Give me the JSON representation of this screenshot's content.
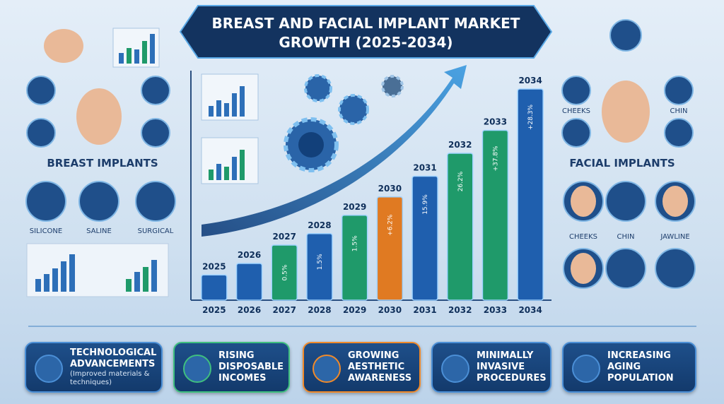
{
  "title": "BREAST AND FACIAL IMPLANT MARKET GROWTH (2025-2034)",
  "chart_data": {
    "type": "bar",
    "categories": [
      "2025",
      "2026",
      "2027",
      "2028",
      "2029",
      "2030",
      "2031",
      "2032",
      "2033",
      "2034"
    ],
    "values": [
      11,
      16,
      24,
      29,
      37,
      45,
      54,
      64,
      74,
      92
    ],
    "colors": [
      "#1f5fae",
      "#1f5fae",
      "#1f9a6a",
      "#1f5fae",
      "#1f9a6a",
      "#e07a22",
      "#1f5fae",
      "#1f9a6a",
      "#1f9a6a",
      "#1f5fae"
    ],
    "bar_notes": [
      null,
      null,
      "0.5%",
      "1.5%",
      "1.5%",
      "+6.2%",
      "15.9%",
      "26.2%",
      "+37.8%",
      "+28.3%"
    ],
    "ylim": [
      0,
      100
    ]
  },
  "breast_implants": {
    "heading": "BREAST IMPLANTS",
    "types": [
      "SILICONE",
      "SALINE",
      "SURGICAL"
    ]
  },
  "facial_implants": {
    "heading": "FACIAL IMPLANTS",
    "top_types": [
      "CHEEKS",
      "CHIN"
    ],
    "types": [
      "CHEEKS",
      "CHIN",
      "JAWLINE"
    ]
  },
  "drivers": [
    {
      "title": "TECHNOLOGICAL ADVANCEMENTS",
      "note": "(Improved materials & techniques)"
    },
    {
      "title": "RISING DISPOSABLE INCOMES"
    },
    {
      "title": "GROWING AESTHETIC AWARENESS"
    },
    {
      "title": "MINIMALLY INVASIVE PROCEDURES"
    },
    {
      "title": "INCREASING AGING POPULATION"
    }
  ]
}
